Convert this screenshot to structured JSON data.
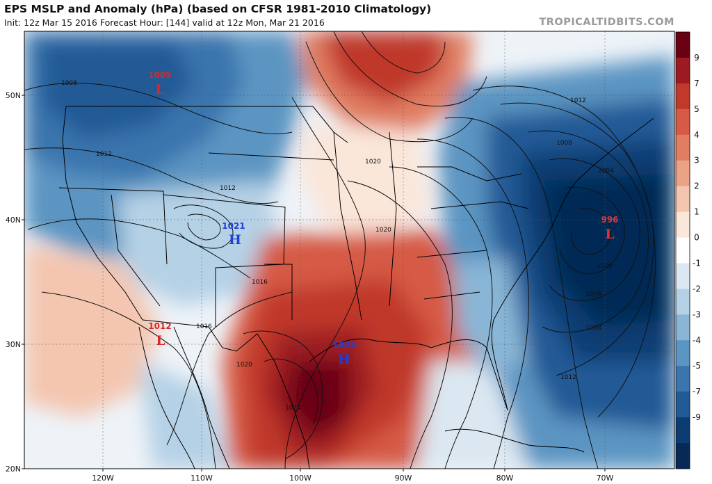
{
  "header": {
    "title": "EPS MSLP and Anomaly (hPa) (based on CFSR 1981-2010 Climatology)",
    "subtitle": "Init: 12z Mar 15 2016   Forecast Hour: [144]   valid at 12z Mon, Mar 21 2016",
    "brand": "TROPICALTIDBITS.COM"
  },
  "axes": {
    "lat_labels": [
      "50N",
      "40N",
      "30N",
      "20N"
    ],
    "lon_labels": [
      "120W",
      "110W",
      "100W",
      "90W",
      "80W",
      "70W"
    ]
  },
  "colorbar": {
    "labels": [
      "9",
      "7",
      "5",
      "4",
      "3",
      "2",
      "1",
      "0",
      "-1",
      "-2",
      "-3",
      "-4",
      "-5",
      "-7",
      "-9"
    ],
    "colors": [
      "#6b0012",
      "#9c1a22",
      "#c0392b",
      "#d65a45",
      "#e07d62",
      "#eba285",
      "#f4c6b0",
      "#fbe6da",
      "#ffffff",
      "#dbe8f2",
      "#b5d1e6",
      "#89b6d6",
      "#5b95c2",
      "#3a75ad",
      "#225a96",
      "#0d3c73",
      "#062a55"
    ]
  },
  "pressure_centers": [
    {
      "type": "L",
      "value": "1005",
      "color": "#d42a2a"
    },
    {
      "type": "H",
      "value": "1021",
      "color": "#1f3fd6"
    },
    {
      "type": "L",
      "value": "1012",
      "color": "#d42a2a"
    },
    {
      "type": "H",
      "value": "1025",
      "color": "#1f3fd6"
    },
    {
      "type": "L",
      "value": "996",
      "color": "#d42a2a"
    }
  ],
  "contour_labels": [
    "1008",
    "1012",
    "1012",
    "1020",
    "1020",
    "1016",
    "1016",
    "1020",
    "1024",
    "1012",
    "1008",
    "1004",
    "1000",
    "1004",
    "1008",
    "1012"
  ]
}
